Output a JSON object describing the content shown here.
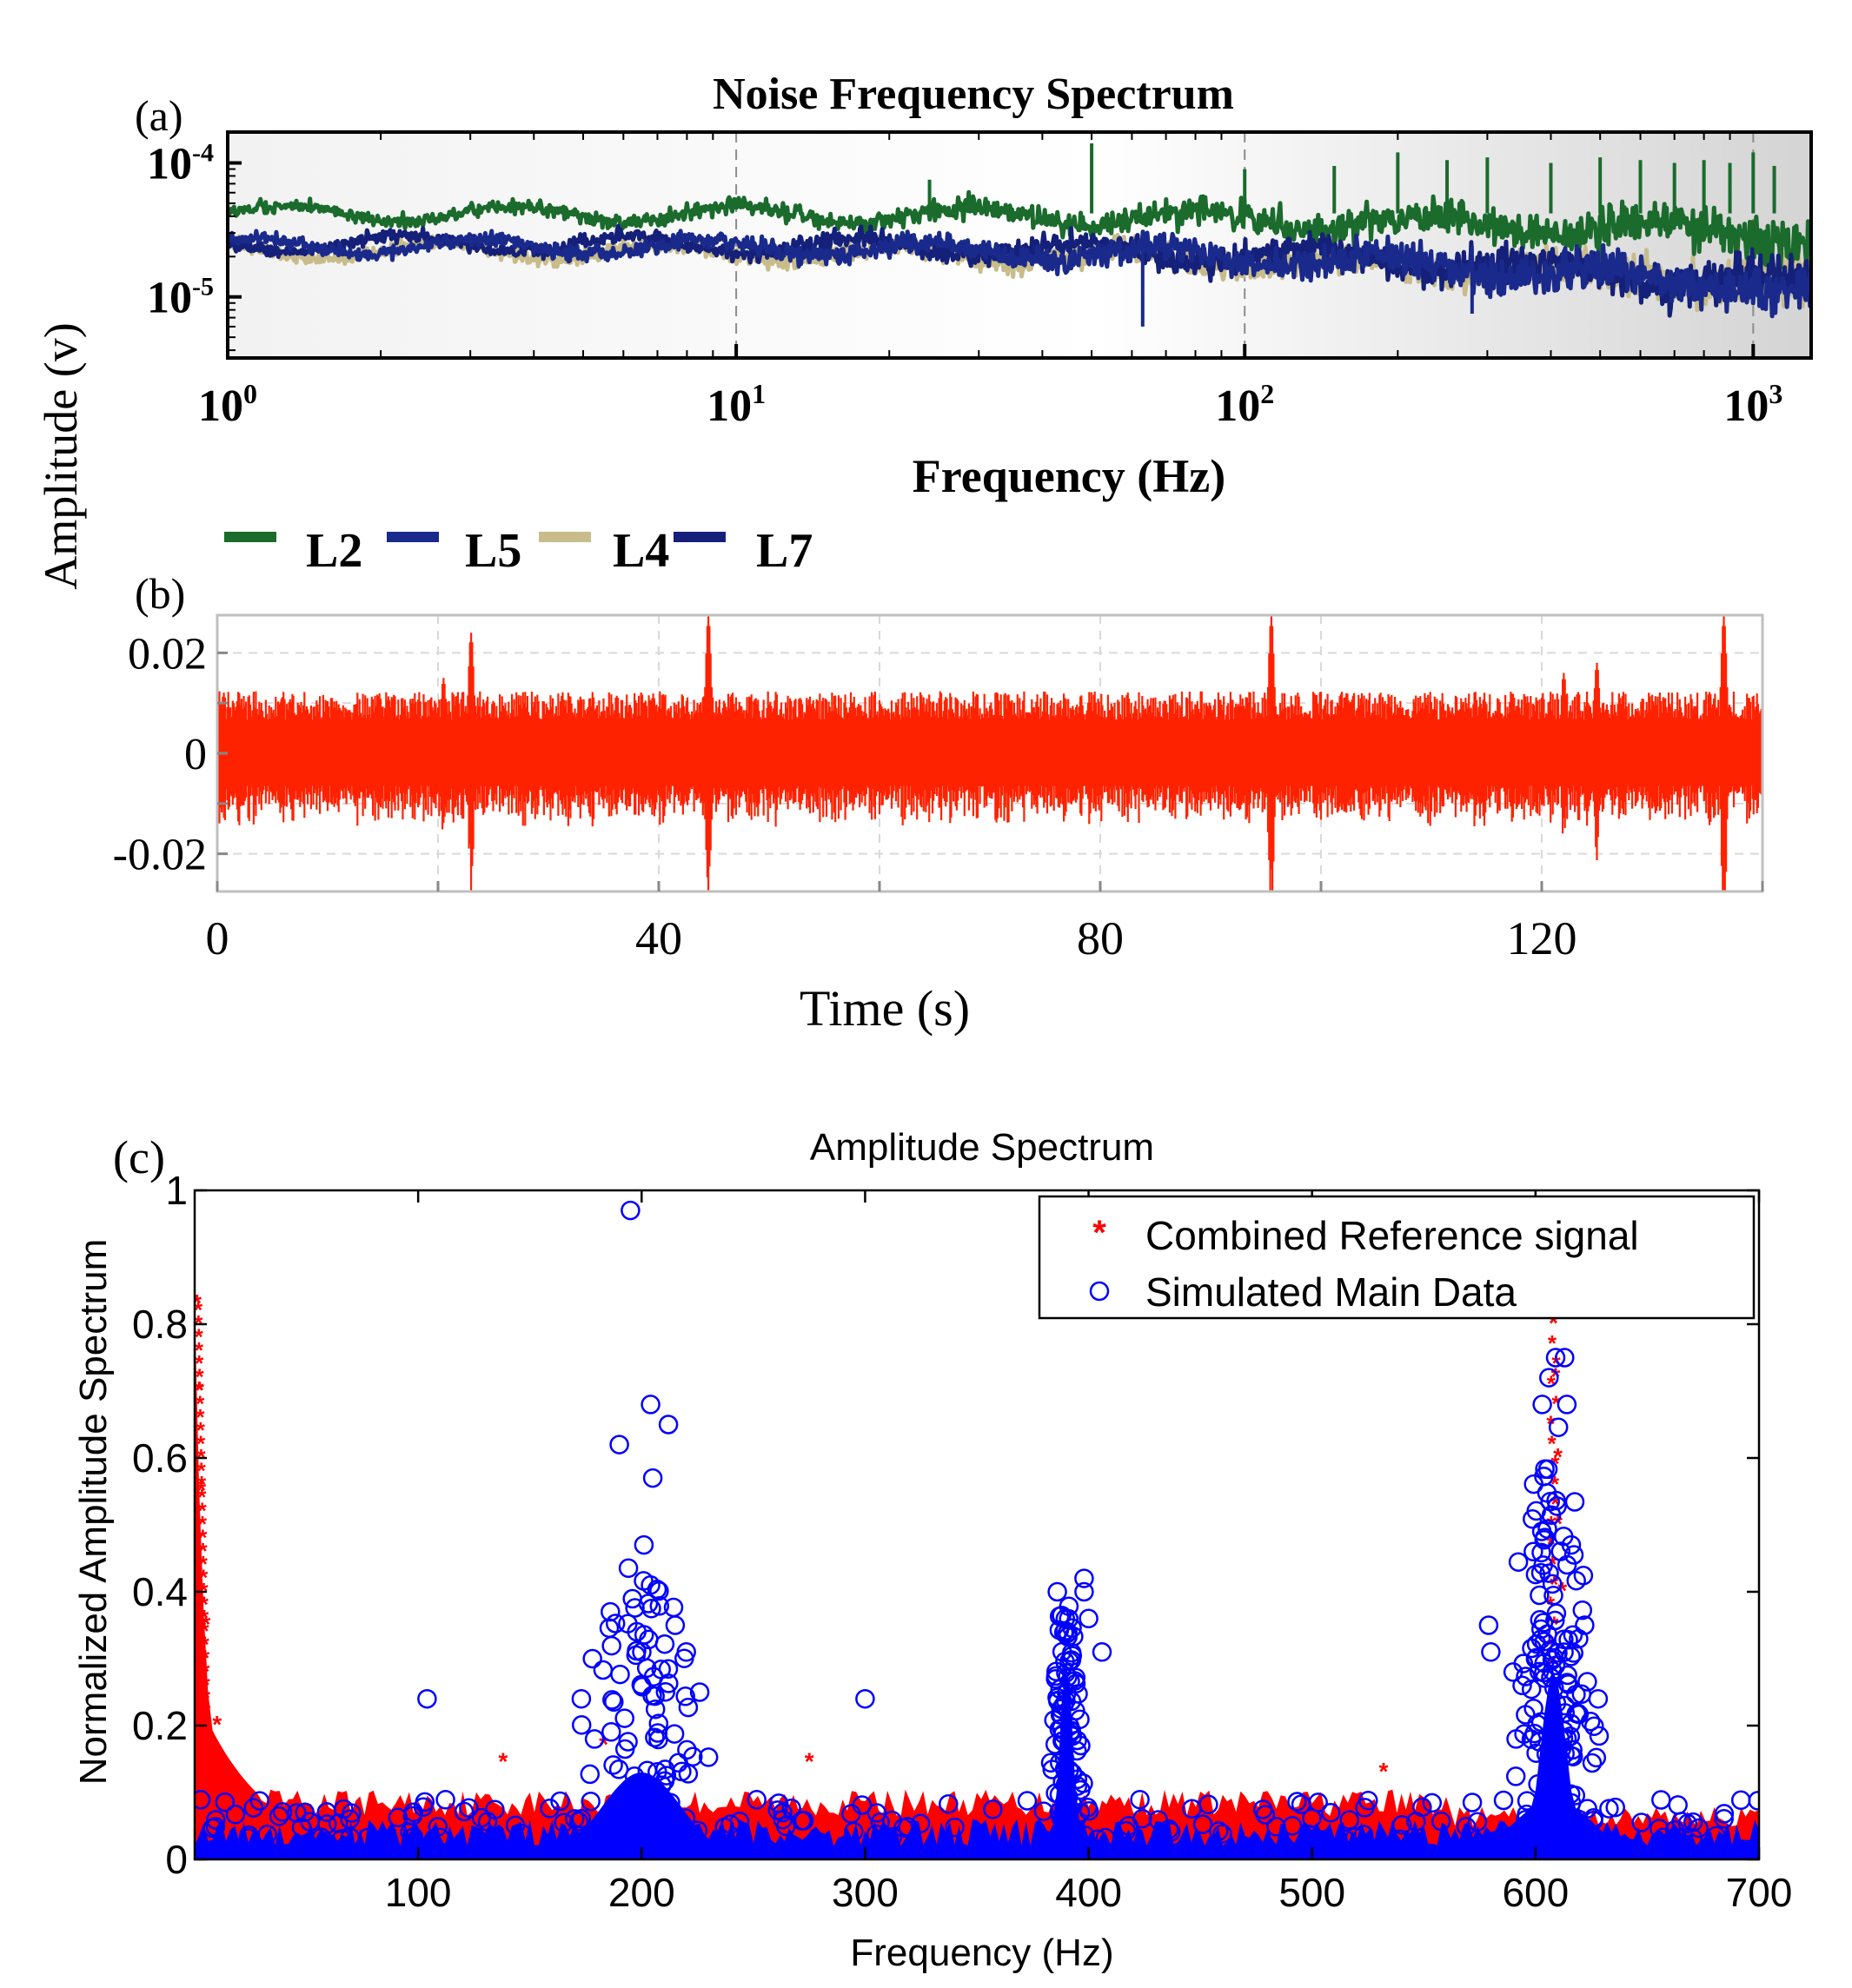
{
  "chart_data": [
    {
      "panel_label": "(a)",
      "type": "line",
      "title": "Noise Frequency Spectrum",
      "xlabel": "Frequency (Hz)",
      "ylabel": "Amplitude (v)",
      "xscale": "log",
      "yscale": "log",
      "xlim": [
        1,
        1300
      ],
      "ylim": [
        3.5e-06,
        0.00017
      ],
      "x_ticks": [
        {
          "v": 1,
          "base": "10",
          "exp": "0"
        },
        {
          "v": 10,
          "base": "10",
          "exp": "1"
        },
        {
          "v": 100,
          "base": "10",
          "exp": "2"
        },
        {
          "v": 1000,
          "base": "10",
          "exp": "3"
        }
      ],
      "y_ticks": [
        {
          "v": 0.0001,
          "base": "10",
          "exp": "-4"
        },
        {
          "v": 1e-05,
          "base": "10",
          "exp": "-5"
        }
      ],
      "legend": "top-left, horizontal, below axis",
      "series": [
        {
          "name": "L2",
          "color": "#1a6b2c",
          "level": 4.2e-05,
          "end_level": 2.8e-05,
          "peaks": [
            {
              "f": 24,
              "a": 7.5e-05
            },
            {
              "f": 50,
              "a": 0.00014
            },
            {
              "f": 100,
              "a": 9e-05
            },
            {
              "f": 150,
              "a": 9.5e-05
            },
            {
              "f": 200,
              "a": 0.00012
            },
            {
              "f": 250,
              "a": 0.000105
            },
            {
              "f": 300,
              "a": 0.00011
            },
            {
              "f": 400,
              "a": 0.0001
            },
            {
              "f": 500,
              "a": 0.00011
            },
            {
              "f": 600,
              "a": 0.000105
            },
            {
              "f": 700,
              "a": 0.0001
            },
            {
              "f": 800,
              "a": 0.000105
            },
            {
              "f": 900,
              "a": 0.0001
            },
            {
              "f": 1000,
              "a": 0.00012
            },
            {
              "f": 1100,
              "a": 9.5e-05
            }
          ]
        },
        {
          "name": "L5",
          "color": "#1a2a8c",
          "level": 2.4e-05,
          "end_level": 1.1e-05,
          "peaks": [
            {
              "f": 63,
              "a": 6e-06
            },
            {
              "f": 280,
              "a": 7.5e-06
            }
          ]
        },
        {
          "name": "L4",
          "color": "#c8bc8a",
          "level": 2.2e-05,
          "end_level": 1.2e-05,
          "peaks": []
        },
        {
          "name": "L7",
          "color": "#14207a",
          "level": 2.5e-05,
          "end_level": 1.2e-05,
          "peaks": []
        }
      ]
    },
    {
      "panel_label": "(b)",
      "type": "line",
      "title": "",
      "xlabel": "Time (s)",
      "ylabel": "Amplitude (v)",
      "xlim": [
        0,
        140
      ],
      "ylim": [
        -0.0275,
        0.0275
      ],
      "x_ticks": [
        {
          "v": 0,
          "label": "0"
        },
        {
          "v": 40,
          "label": "40"
        },
        {
          "v": 80,
          "label": "80"
        },
        {
          "v": 120,
          "label": "120"
        }
      ],
      "y_ticks": [
        {
          "v": 0.02,
          "label": "0.02"
        },
        {
          "v": 0,
          "label": "0"
        },
        {
          "v": -0.02,
          "label": "-0.02"
        }
      ],
      "series": [
        {
          "name": "noise",
          "color": "#ff2200",
          "base_amplitude": 0.0095,
          "bursts": [
            {
              "t": 20.5,
              "a": 0.015
            },
            {
              "t": 23,
              "a": 0.024
            },
            {
              "t": 44.5,
              "a": 0.0275
            },
            {
              "t": 95.5,
              "a": 0.0275
            },
            {
              "t": 122,
              "a": 0.016
            },
            {
              "t": 125,
              "a": 0.018
            },
            {
              "t": 136.5,
              "a": 0.0275
            }
          ]
        }
      ]
    },
    {
      "panel_label": "(c)",
      "type": "scatter",
      "title": "Amplitude Spectrum",
      "xlabel": "Frequency (Hz)",
      "ylabel": "Normalized Amplitude Spectrum",
      "xlim": [
        0,
        700
      ],
      "ylim": [
        0,
        1
      ],
      "x_ticks": [
        {
          "v": 100,
          "label": "100"
        },
        {
          "v": 200,
          "label": "200"
        },
        {
          "v": 300,
          "label": "300"
        },
        {
          "v": 400,
          "label": "400"
        },
        {
          "v": 500,
          "label": "500"
        },
        {
          "v": 600,
          "label": "600"
        },
        {
          "v": 700,
          "label": "700"
        }
      ],
      "y_ticks": [
        {
          "v": 0,
          "label": "0"
        },
        {
          "v": 0.2,
          "label": "0.2"
        },
        {
          "v": 0.4,
          "label": "0.4"
        },
        {
          "v": 0.6,
          "label": "0.6"
        },
        {
          "v": 0.8,
          "label": "0.8"
        },
        {
          "v": 1,
          "label": "1"
        }
      ],
      "legend": "top-right",
      "series": [
        {
          "name": "Combined Reference signal",
          "marker": "*",
          "color": "#ff0000",
          "floor": 0.1,
          "highlights": [
            {
              "x": 1,
              "y": 0.83
            },
            {
              "x": 2,
              "y": 0.7
            },
            {
              "x": 3,
              "y": 0.55
            },
            {
              "x": 5,
              "y": 0.35
            },
            {
              "x": 10,
              "y": 0.2
            },
            {
              "x": 138,
              "y": 0.145
            },
            {
              "x": 183,
              "y": 0.17
            },
            {
              "x": 275,
              "y": 0.145
            },
            {
              "x": 532,
              "y": 0.13
            },
            {
              "x": 608,
              "y": 0.8
            },
            {
              "x": 609,
              "y": 0.72
            },
            {
              "x": 610,
              "y": 0.6
            },
            {
              "x": 610,
              "y": 0.5
            },
            {
              "x": 612,
              "y": 0.4
            }
          ]
        },
        {
          "name": "Simulated Main Data",
          "marker": "o",
          "color": "#0000ff",
          "floor": 0.05,
          "highlights": [
            {
              "x": 104,
              "y": 0.24
            },
            {
              "x": 195,
              "y": 0.97
            },
            {
              "x": 204,
              "y": 0.68
            },
            {
              "x": 212,
              "y": 0.65
            },
            {
              "x": 190,
              "y": 0.62
            },
            {
              "x": 205,
              "y": 0.57
            },
            {
              "x": 201,
              "y": 0.47
            },
            {
              "x": 204,
              "y": 0.41
            },
            {
              "x": 186,
              "y": 0.37
            },
            {
              "x": 215,
              "y": 0.35
            },
            {
              "x": 220,
              "y": 0.31
            },
            {
              "x": 178,
              "y": 0.3
            },
            {
              "x": 173,
              "y": 0.24
            },
            {
              "x": 226,
              "y": 0.25
            },
            {
              "x": 300,
              "y": 0.24
            },
            {
              "x": 386,
              "y": 0.4
            },
            {
              "x": 398,
              "y": 0.42
            },
            {
              "x": 398,
              "y": 0.4
            },
            {
              "x": 400,
              "y": 0.36
            },
            {
              "x": 406,
              "y": 0.31
            },
            {
              "x": 579,
              "y": 0.35
            },
            {
              "x": 599,
              "y": 0.46
            },
            {
              "x": 603,
              "y": 0.68
            },
            {
              "x": 606,
              "y": 0.72
            },
            {
              "x": 609,
              "y": 0.75
            },
            {
              "x": 613,
              "y": 0.75
            },
            {
              "x": 614,
              "y": 0.68
            },
            {
              "x": 616,
              "y": 0.47
            },
            {
              "x": 622,
              "y": 0.35
            },
            {
              "x": 580,
              "y": 0.31
            },
            {
              "x": 590,
              "y": 0.28
            },
            {
              "x": 628,
              "y": 0.24
            }
          ]
        }
      ]
    }
  ]
}
